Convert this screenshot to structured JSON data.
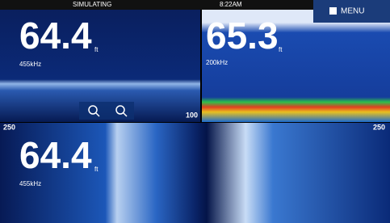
{
  "top_bar": {
    "status": "SIMULATING",
    "time": "8:22AM",
    "menu": "MENU"
  },
  "panels": [
    {
      "depth": "64.4",
      "unit": "ft",
      "frequency": "455kHz",
      "range": "100"
    },
    {
      "depth": "65.3",
      "unit": "ft",
      "frequency": "200kHz"
    },
    {
      "depth": "64.4",
      "unit": "ft",
      "frequency": "455kHz",
      "range_left": "250",
      "range_right": "250"
    }
  ]
}
